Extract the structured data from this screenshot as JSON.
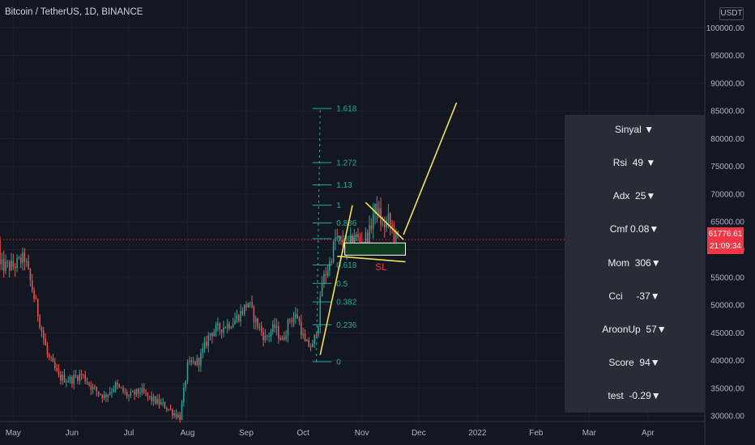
{
  "header": {
    "title": "Bitcoin / TetherUS, 1D, BINANCE"
  },
  "price_axis": {
    "currency": "USDT",
    "last_price": "61776.61",
    "countdown": "21:09:34",
    "last_price_value": 61776.61
  },
  "indicator_panel": {
    "rows": [
      "Sinyal ▼",
      "Rsi  49 ▼",
      "Adx  25▼",
      "Cmf 0.08▼",
      "Mom  306▼",
      "Cci     -37▼",
      "AroonUp  57▼",
      "Score  94▼",
      "test  -0.29▼"
    ]
  },
  "chart_data": {
    "type": "candlestick",
    "title": "Bitcoin / TetherUS, 1D, BINANCE",
    "y_ticks": [
      30000,
      35000,
      40000,
      45000,
      50000,
      55000,
      60000,
      65000,
      70000,
      75000,
      80000,
      85000,
      90000,
      95000,
      100000
    ],
    "y_tick_labels": [
      "30000.00",
      "35000.00",
      "40000.00",
      "45000.00",
      "50000.00",
      "55000.00",
      "60000.00",
      "65000.00",
      "70000.00",
      "75000.00",
      "80000.00",
      "85000.00",
      "90000.00",
      "95000.00",
      "100000.00"
    ],
    "ylim": [
      29000,
      105000
    ],
    "x_labels": [
      "May",
      "Jun",
      "Jul",
      "Aug",
      "Sep",
      "Oct",
      "Nov",
      "Dec",
      "2022",
      "Feb",
      "Mar",
      "Apr"
    ],
    "x_label_days": [
      0,
      31,
      61,
      92,
      123,
      153,
      184,
      214,
      245,
      276,
      304,
      335
    ],
    "xlim_days": [
      -7,
      365
    ],
    "path_points": [
      [
        0,
        57000
      ],
      [
        6,
        58500
      ],
      [
        12,
        50000
      ],
      [
        18,
        41000
      ],
      [
        24,
        37000
      ],
      [
        30,
        36500
      ],
      [
        36,
        37500
      ],
      [
        42,
        35000
      ],
      [
        48,
        33500
      ],
      [
        54,
        35500
      ],
      [
        61,
        33500
      ],
      [
        67,
        34500
      ],
      [
        73,
        33000
      ],
      [
        79,
        32000
      ],
      [
        85,
        30500
      ],
      [
        88,
        29800
      ],
      [
        92,
        39000
      ],
      [
        98,
        40000
      ],
      [
        104,
        45000
      ],
      [
        110,
        46000
      ],
      [
        116,
        47000
      ],
      [
        120,
        48500
      ],
      [
        124,
        50500
      ],
      [
        128,
        47000
      ],
      [
        133,
        44000
      ],
      [
        138,
        46000
      ],
      [
        142,
        43500
      ],
      [
        146,
        47500
      ],
      [
        150,
        48000
      ],
      [
        154,
        43000
      ],
      [
        158,
        42500
      ],
      [
        161,
        47000
      ],
      [
        163,
        54000
      ],
      [
        167,
        57500
      ],
      [
        170,
        62000
      ],
      [
        172,
        61500
      ],
      [
        176,
        60000
      ],
      [
        180,
        62500
      ],
      [
        184,
        61300
      ],
      [
        188,
        63000
      ],
      [
        190,
        66500
      ],
      [
        192,
        67500
      ],
      [
        195,
        64000
      ],
      [
        198,
        65300
      ],
      [
        201,
        62500
      ],
      [
        203,
        61800
      ]
    ],
    "fib_levels": [
      "1.618",
      "1.272",
      "1.13",
      "1",
      "0.886",
      "0.786",
      "0.618",
      "0.5",
      "0.382",
      "0.236",
      "0"
    ],
    "fib_values": [
      1.618,
      1.272,
      1.13,
      1,
      0.886,
      0.786,
      0.618,
      0.5,
      0.382,
      0.236,
      0
    ],
    "fib_low": 39800,
    "fib_high": 68000,
    "annotation_sl": "SL",
    "zone_low": 59000,
    "zone_high": 61200,
    "zone_days": [
      175,
      207
    ],
    "drawn_lines": [
      [
        [
          162,
          41000
        ],
        [
          179,
          68000
        ]
      ],
      [
        [
          171,
          58800
        ],
        [
          207,
          57800
        ]
      ],
      [
        [
          186,
          68500
        ],
        [
          206,
          61800
        ]
      ],
      [
        [
          206,
          62700
        ],
        [
          234,
          86500
        ]
      ]
    ]
  }
}
